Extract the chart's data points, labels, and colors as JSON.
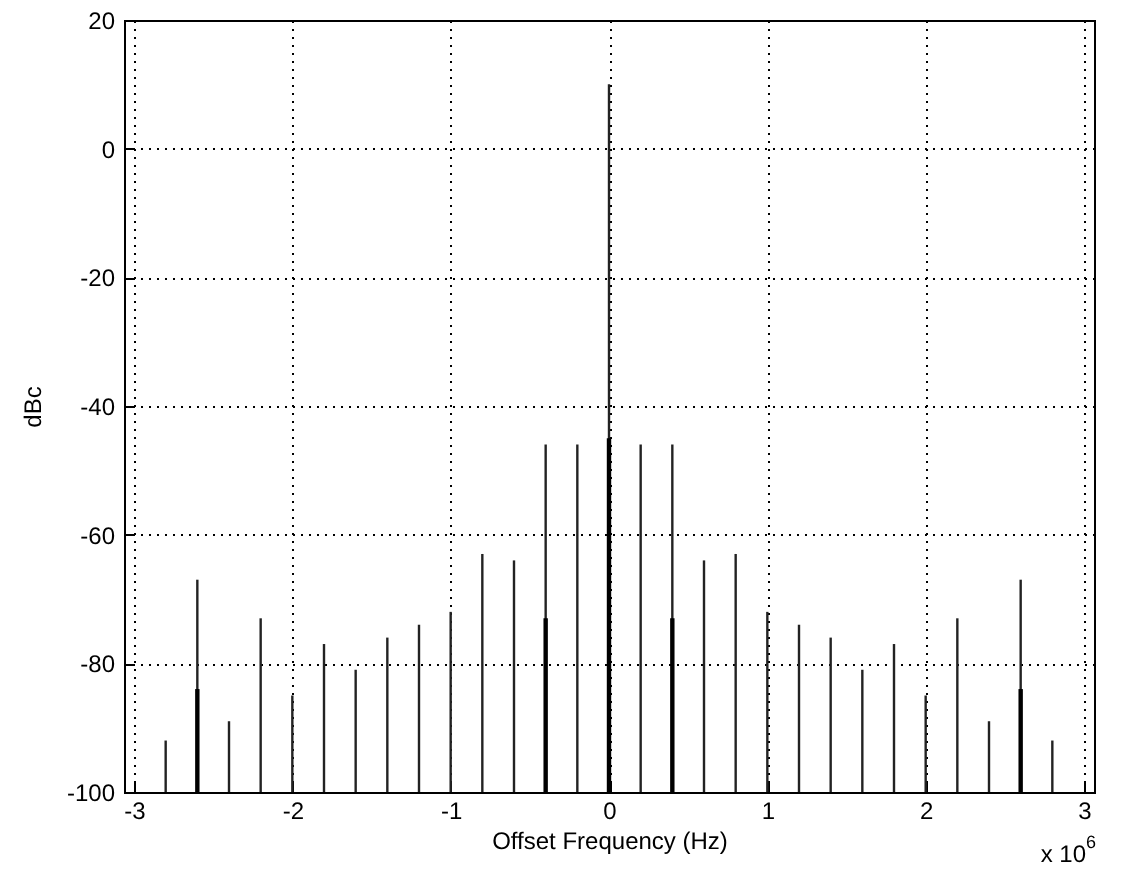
{
  "chart_data": {
    "type": "bar",
    "xlabel": "Offset Frequency (Hz)",
    "ylabel": "dBc",
    "x": [
      -2.8,
      -2.6,
      -2.4,
      -2.2,
      -2.0,
      -1.8,
      -1.6,
      -1.4,
      -1.2,
      -1.0,
      -0.8,
      -0.6,
      -0.4,
      -0.2,
      0,
      0.2,
      0.4,
      0.6,
      0.8,
      1.0,
      1.2,
      1.4,
      1.6,
      1.8,
      2.0,
      2.2,
      2.4,
      2.6,
      2.8
    ],
    "series": [
      {
        "color": "#222222",
        "base": [
          -100,
          -100,
          -100,
          -100,
          -100,
          -100,
          -100,
          -100,
          -100,
          -100,
          -100,
          -100,
          -100,
          -100,
          -100,
          -100,
          -100,
          -100,
          -100,
          -100,
          -100,
          -100,
          -100,
          -100,
          -100,
          -100,
          -100,
          -100,
          -100
        ],
        "values": [
          8,
          33,
          11,
          27,
          15,
          23,
          19,
          24,
          26,
          28,
          37,
          36,
          54,
          54,
          110,
          54,
          54,
          36,
          37,
          28,
          26,
          24,
          19,
          23,
          15,
          27,
          11,
          33,
          8
        ]
      },
      {
        "color": "#000000",
        "x": [
          -2.6,
          -0.4,
          0,
          0.4,
          2.6
        ],
        "base": [
          -100,
          -100,
          -100,
          -100,
          -100
        ],
        "values": [
          16,
          27,
          55,
          27,
          16
        ]
      }
    ],
    "xlim": [
      -3,
      3
    ],
    "xticks": [
      -3,
      -2,
      -1,
      0,
      1,
      2,
      3
    ],
    "ylim": [
      -100,
      20
    ],
    "yticks": [
      -100,
      -80,
      -60,
      -40,
      -20,
      0,
      20
    ],
    "grid": true,
    "line_style": "dotted",
    "annotations": [
      "x 10$^{6}$"
    ]
  }
}
